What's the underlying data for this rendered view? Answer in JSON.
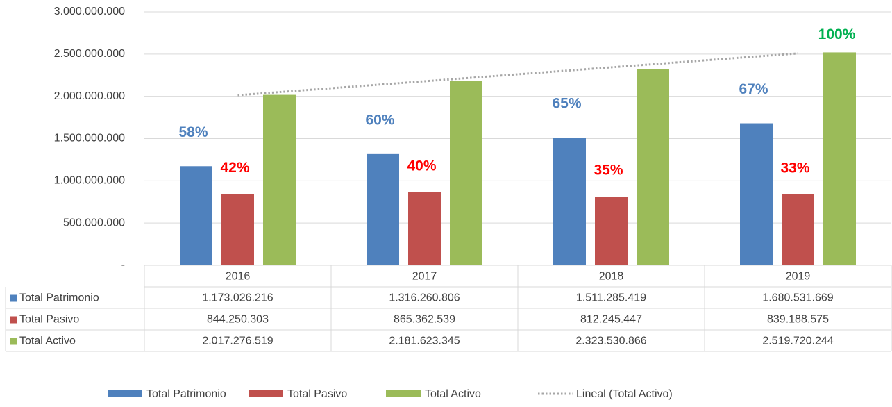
{
  "chart_data": {
    "type": "bar",
    "categories": [
      "2016",
      "2017",
      "2018",
      "2019"
    ],
    "series": [
      {
        "name": "Total Patrimonio",
        "color": "#4f81bd",
        "label_color": "#4f81bd",
        "values": [
          1173026216,
          1316260806,
          1511285419,
          1680531669
        ],
        "value_labels": [
          "1.173.026.216",
          "1.316.260.806",
          "1.511.285.419",
          "1.680.531.669"
        ],
        "percent_labels": [
          "58%",
          "60%",
          "65%",
          "67%"
        ]
      },
      {
        "name": "Total Pasivo",
        "color": "#c0504d",
        "label_color": "#ff0000",
        "values": [
          844250303,
          865362539,
          812245447,
          839188575
        ],
        "value_labels": [
          "844.250.303",
          "865.362.539",
          "812.245.447",
          "839.188.575"
        ],
        "percent_labels": [
          "42%",
          "40%",
          "35%",
          "33%"
        ]
      },
      {
        "name": "Total Activo",
        "color": "#9bbb59",
        "label_color": "#00b050",
        "values": [
          2017276519,
          2181623345,
          2323530866,
          2519720244
        ],
        "value_labels": [
          "2.017.276.519",
          "2.181.623.345",
          "2.323.530.866",
          "2.519.720.244"
        ],
        "percent_labels": [
          null,
          null,
          null,
          "100%"
        ]
      }
    ],
    "trendline": {
      "name": "Lineal (Total Activo)",
      "series": 2,
      "kind": "linear",
      "color": "#a6a6a6"
    },
    "ylim": [
      0,
      3000000000
    ],
    "yticks": [
      {
        "value": 0,
        "label": "-"
      },
      {
        "value": 500000000,
        "label": "500.000.000"
      },
      {
        "value": 1000000000,
        "label": "1.000.000.000"
      },
      {
        "value": 1500000000,
        "label": "1.500.000.000"
      },
      {
        "value": 2000000000,
        "label": "2.000.000.000"
      },
      {
        "value": 2500000000,
        "label": "2.500.000.000"
      },
      {
        "value": 3000000000,
        "label": "3.000.000.000"
      }
    ],
    "grid": true,
    "legend": "bottom",
    "data_table": true
  }
}
